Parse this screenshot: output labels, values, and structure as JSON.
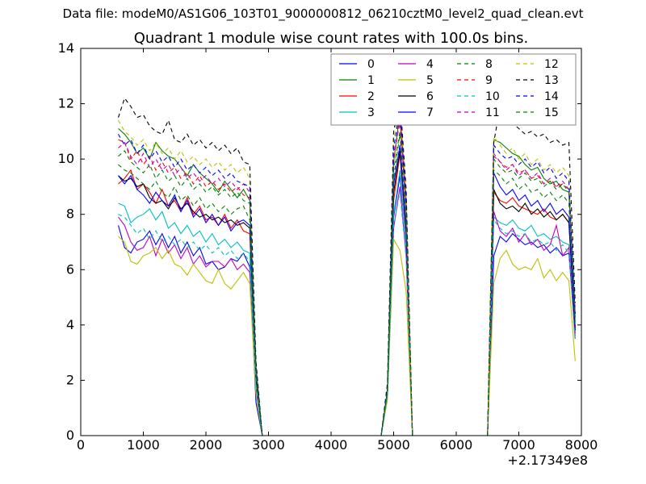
{
  "header": {
    "file_label": "Data file: modeM0/AS1G06_103T01_9000000812_06210cztM0_level2_quad_clean.evt",
    "title": "Quadrant 1 module wise count rates with 100.0s bins."
  },
  "chart_data": {
    "type": "line",
    "title": "Quadrant 1 module wise count rates with 100.0s bins.",
    "xlabel": "",
    "ylabel": "",
    "x_offset_label": "+2.17349e8",
    "xlim": [
      0,
      8000
    ],
    "ylim": [
      0,
      14
    ],
    "x_ticks": [
      0,
      1000,
      2000,
      3000,
      4000,
      5000,
      6000,
      7000,
      8000
    ],
    "y_ticks": [
      0,
      2,
      4,
      6,
      8,
      10,
      12,
      14
    ],
    "grid": false,
    "legend_position": "top-right",
    "legend_columns": 4,
    "x": [
      600,
      700,
      800,
      900,
      1000,
      1100,
      1200,
      1300,
      1400,
      1500,
      1600,
      1700,
      1800,
      1900,
      2000,
      2100,
      2200,
      2300,
      2400,
      2500,
      2600,
      2700,
      2800,
      2900,
      3000,
      3500,
      4000,
      4500,
      4800,
      4900,
      5000,
      5100,
      5200,
      5300,
      5400,
      5500,
      6000,
      6400,
      6500,
      6600,
      6700,
      6800,
      6900,
      7000,
      7100,
      7200,
      7300,
      7400,
      7500,
      7600,
      7700,
      7800,
      7900
    ],
    "series": [
      {
        "name": "0",
        "color": "#0000ff",
        "dash": "solid",
        "values": [
          7.6,
          6.8,
          6.6,
          7.0,
          7.1,
          7.4,
          6.9,
          7.3,
          6.8,
          7.2,
          6.6,
          7.0,
          6.5,
          6.8,
          6.2,
          6.3,
          6.0,
          6.1,
          6.4,
          6.3,
          6.6,
          6.1,
          1.2,
          0,
          0,
          0,
          0,
          0,
          0,
          1.5,
          7.9,
          9.4,
          7.0,
          0,
          0,
          0,
          0,
          0,
          0,
          6.5,
          7.2,
          7.0,
          7.3,
          7.1,
          6.9,
          7.0,
          6.8,
          6.9,
          6.6,
          6.8,
          6.5,
          6.6,
          3.7
        ]
      },
      {
        "name": "1",
        "color": "#008000",
        "dash": "solid",
        "values": [
          11.1,
          10.9,
          10.6,
          10.2,
          10.4,
          10.0,
          10.6,
          10.3,
          10.1,
          10.0,
          9.7,
          9.4,
          9.8,
          9.5,
          9.3,
          9.1,
          8.8,
          9.2,
          8.9,
          8.6,
          8.9,
          8.5,
          2.5,
          0,
          0,
          0,
          0,
          0,
          0,
          1.6,
          9.9,
          11.7,
          8.1,
          0,
          0,
          0,
          0,
          0,
          0,
          10.7,
          10.6,
          10.4,
          10.2,
          10.1,
          9.8,
          9.6,
          9.7,
          9.3,
          9.1,
          9.2,
          8.9,
          8.8,
          4.4
        ]
      },
      {
        "name": "2",
        "color": "#ff0000",
        "dash": "solid",
        "values": [
          9.1,
          9.3,
          9.6,
          8.9,
          9.1,
          8.8,
          8.4,
          8.9,
          8.3,
          8.5,
          8.1,
          8.6,
          8.0,
          8.3,
          7.8,
          7.9,
          7.6,
          8.0,
          7.5,
          7.8,
          7.4,
          7.3,
          2.0,
          0,
          0,
          0,
          0,
          0,
          0,
          1.5,
          8.5,
          10.2,
          7.2,
          0,
          0,
          0,
          0,
          0,
          0,
          8.8,
          8.5,
          8.4,
          8.6,
          8.3,
          8.2,
          8.1,
          8.0,
          8.2,
          7.9,
          7.8,
          8.0,
          7.7,
          3.9
        ]
      },
      {
        "name": "3",
        "color": "#00bfbf",
        "dash": "solid",
        "values": [
          8.4,
          8.3,
          7.7,
          7.9,
          8.0,
          8.2,
          7.8,
          8.1,
          7.5,
          7.7,
          7.3,
          7.6,
          7.2,
          7.4,
          7.0,
          7.3,
          6.9,
          7.1,
          6.8,
          7.0,
          6.7,
          6.6,
          1.9,
          0,
          0,
          0,
          0,
          0,
          0,
          1.5,
          8.0,
          9.6,
          6.9,
          0,
          0,
          0,
          0,
          0,
          0,
          7.9,
          7.7,
          7.6,
          7.8,
          7.5,
          7.4,
          7.6,
          7.2,
          7.3,
          7.1,
          7.2,
          7.0,
          6.9,
          3.6
        ]
      },
      {
        "name": "4",
        "color": "#bf00bf",
        "dash": "solid",
        "values": [
          7.9,
          7.6,
          7.0,
          6.7,
          6.8,
          7.2,
          6.5,
          7.1,
          6.6,
          6.9,
          6.4,
          6.8,
          6.2,
          6.5,
          6.1,
          6.3,
          6.3,
          6.1,
          6.4,
          6.0,
          6.2,
          5.9,
          1.7,
          0,
          0,
          0,
          0,
          0,
          0,
          1.4,
          7.5,
          9.0,
          6.5,
          0,
          0,
          0,
          0,
          0,
          0,
          8.1,
          7.4,
          7.2,
          7.5,
          7.0,
          7.3,
          6.9,
          7.1,
          6.7,
          6.9,
          7.6,
          6.5,
          6.8,
          3.5
        ]
      },
      {
        "name": "5",
        "color": "#bfbf00",
        "dash": "solid",
        "values": [
          7.2,
          7.0,
          6.3,
          6.2,
          6.5,
          6.6,
          6.8,
          6.4,
          6.7,
          6.2,
          6.1,
          5.8,
          6.2,
          5.9,
          5.6,
          5.5,
          6.0,
          5.5,
          5.3,
          5.6,
          5.9,
          5.5,
          1.5,
          0,
          0,
          0,
          0,
          0,
          0,
          1.3,
          7.1,
          6.7,
          5.2,
          0,
          0,
          0,
          0,
          0,
          0,
          5.5,
          6.4,
          6.7,
          6.2,
          6.0,
          6.1,
          6.0,
          6.4,
          5.7,
          6.0,
          5.6,
          5.9,
          5.6,
          2.7
        ]
      },
      {
        "name": "6",
        "color": "#000000",
        "dash": "solid",
        "values": [
          9.4,
          9.2,
          9.3,
          9.0,
          9.1,
          8.6,
          8.4,
          8.5,
          8.2,
          8.6,
          8.2,
          8.4,
          8.1,
          7.9,
          8.0,
          7.8,
          7.9,
          7.7,
          7.8,
          7.6,
          7.7,
          7.5,
          2.1,
          0,
          0,
          0,
          0,
          0,
          0,
          1.6,
          8.8,
          10.3,
          7.4,
          0,
          0,
          0,
          0,
          0,
          0,
          8.9,
          8.4,
          8.2,
          8.3,
          8.1,
          8.4,
          8.0,
          8.2,
          7.9,
          8.1,
          7.8,
          8.0,
          7.7,
          3.8
        ]
      },
      {
        "name": "7",
        "color": "#0000ff",
        "dash": "solid",
        "values": [
          9.4,
          9.1,
          9.4,
          8.9,
          8.7,
          8.4,
          8.8,
          8.5,
          8.3,
          8.7,
          8.1,
          8.5,
          7.9,
          8.2,
          7.7,
          8.0,
          7.6,
          7.9,
          7.4,
          7.7,
          7.8,
          7.6,
          2.2,
          0,
          0,
          0,
          0,
          0,
          0,
          1.6,
          9.1,
          10.5,
          7.5,
          0,
          0,
          0,
          0,
          0,
          0,
          9.5,
          9.0,
          8.7,
          8.9,
          8.5,
          8.7,
          8.3,
          8.5,
          8.1,
          8.4,
          8.0,
          8.2,
          7.9,
          3.9
        ]
      },
      {
        "name": "8",
        "color": "#008000",
        "dash": "dashed",
        "values": [
          9.8,
          9.6,
          9.5,
          9.3,
          9.1,
          8.9,
          9.2,
          8.8,
          8.6,
          9.0,
          8.5,
          8.7,
          8.3,
          8.6,
          8.2,
          8.4,
          8.1,
          8.3,
          8.0,
          8.2,
          8.3,
          7.8,
          2.2,
          0,
          0,
          0,
          0,
          0,
          0,
          1.6,
          9.3,
          10.9,
          7.8,
          0,
          0,
          0,
          0,
          0,
          0,
          9.6,
          9.4,
          9.1,
          9.3,
          8.9,
          9.1,
          8.8,
          8.9,
          8.6,
          8.8,
          8.5,
          8.7,
          8.4,
          4.1
        ]
      },
      {
        "name": "9",
        "color": "#ff0000",
        "dash": "dashed",
        "values": [
          10.7,
          10.6,
          10.0,
          10.3,
          9.8,
          10.1,
          9.6,
          9.9,
          9.5,
          9.7,
          9.3,
          9.5,
          9.1,
          9.4,
          9.0,
          9.2,
          8.9,
          9.1,
          8.8,
          9.0,
          8.7,
          8.6,
          2.4,
          0,
          0,
          0,
          0,
          0,
          0,
          1.7,
          9.9,
          11.5,
          8.2,
          0,
          0,
          0,
          0,
          0,
          0,
          10.1,
          9.9,
          9.7,
          9.8,
          9.5,
          9.6,
          9.3,
          9.4,
          9.1,
          9.2,
          9.0,
          9.1,
          8.9,
          4.3
        ]
      },
      {
        "name": "10",
        "color": "#00bfbf",
        "dash": "dashed",
        "values": [
          8.0,
          7.9,
          7.6,
          7.3,
          7.5,
          7.1,
          7.4,
          7.0,
          7.2,
          6.9,
          7.1,
          6.8,
          7.0,
          6.7,
          6.9,
          6.6,
          6.8,
          6.5,
          6.7,
          6.4,
          6.6,
          6.3,
          1.8,
          0,
          0,
          0,
          0,
          0,
          0,
          1.4,
          7.6,
          8.8,
          6.4,
          0,
          0,
          0,
          0,
          0,
          0,
          7.8,
          7.5,
          7.3,
          7.4,
          7.2,
          7.3,
          7.0,
          7.1,
          6.9,
          7.0,
          6.7,
          6.9,
          6.6,
          3.4
        ]
      },
      {
        "name": "11",
        "color": "#bf00bf",
        "dash": "dashed",
        "values": [
          10.4,
          10.6,
          10.1,
          9.8,
          10.2,
          9.7,
          10.0,
          9.6,
          9.8,
          9.4,
          9.7,
          9.3,
          9.5,
          9.2,
          9.4,
          9.1,
          9.3,
          9.0,
          9.2,
          8.9,
          9.1,
          8.8,
          2.4,
          0,
          0,
          0,
          0,
          0,
          0,
          1.7,
          10.2,
          11.3,
          8.3,
          0,
          0,
          0,
          0,
          0,
          0,
          10.2,
          9.9,
          9.6,
          9.8,
          9.4,
          9.6,
          9.3,
          9.5,
          9.1,
          9.3,
          9.0,
          9.2,
          8.9,
          4.3
        ]
      },
      {
        "name": "12",
        "color": "#bfbf00",
        "dash": "dashed",
        "values": [
          11.4,
          11.0,
          10.8,
          10.5,
          10.7,
          10.3,
          10.6,
          10.2,
          10.4,
          10.0,
          10.3,
          9.9,
          10.1,
          9.8,
          10.0,
          9.7,
          9.9,
          9.6,
          9.8,
          9.5,
          9.7,
          9.3,
          2.6,
          0,
          0,
          0,
          0,
          0,
          0,
          1.8,
          10.7,
          12.0,
          8.7,
          0,
          0,
          0,
          0,
          0,
          0,
          10.8,
          10.5,
          10.2,
          10.4,
          10.0,
          10.2,
          9.8,
          10.0,
          9.6,
          9.8,
          9.5,
          9.7,
          9.4,
          4.6
        ]
      },
      {
        "name": "13",
        "color": "#000000",
        "dash": "dashed",
        "values": [
          11.5,
          12.2,
          11.9,
          11.5,
          11.6,
          11.2,
          11.0,
          10.9,
          11.4,
          10.7,
          10.6,
          10.9,
          10.5,
          10.7,
          10.4,
          10.6,
          10.3,
          10.5,
          10.2,
          10.4,
          9.9,
          9.8,
          2.7,
          0,
          0,
          0,
          0,
          0,
          0,
          1.9,
          11.0,
          12.2,
          8.9,
          0,
          0,
          0,
          0,
          0,
          0,
          10.6,
          11.9,
          11.5,
          11.3,
          11.1,
          10.9,
          11.0,
          10.8,
          10.9,
          10.6,
          10.7,
          10.5,
          10.6,
          4.8
        ]
      },
      {
        "name": "14",
        "color": "#0000ff",
        "dash": "dashed",
        "values": [
          10.9,
          10.5,
          10.7,
          10.2,
          10.5,
          10.0,
          10.3,
          9.9,
          10.1,
          9.7,
          10.0,
          9.6,
          9.8,
          9.5,
          9.7,
          9.4,
          9.6,
          9.3,
          9.5,
          9.2,
          9.1,
          9.0,
          2.5,
          0,
          0,
          0,
          0,
          0,
          0,
          1.7,
          10.4,
          11.8,
          8.5,
          0,
          0,
          0,
          0,
          0,
          0,
          10.5,
          10.2,
          10.0,
          10.1,
          9.8,
          10.0,
          9.7,
          9.9,
          9.5,
          9.7,
          9.3,
          9.5,
          9.2,
          4.4
        ]
      },
      {
        "name": "15",
        "color": "#008000",
        "dash": "dashed",
        "values": [
          10.1,
          10.3,
          9.9,
          9.7,
          9.5,
          9.8,
          9.3,
          9.6,
          9.2,
          9.4,
          9.0,
          9.3,
          8.9,
          9.1,
          8.8,
          9.0,
          8.7,
          8.9,
          8.6,
          8.8,
          8.5,
          8.4,
          2.3,
          0,
          0,
          0,
          0,
          0,
          0,
          1.6,
          9.6,
          11.0,
          8.0,
          0,
          0,
          0,
          0,
          0,
          0,
          10.0,
          9.7,
          9.5,
          9.6,
          9.3,
          9.5,
          9.2,
          9.3,
          9.0,
          9.2,
          8.9,
          9.1,
          8.8,
          4.2
        ]
      }
    ]
  }
}
